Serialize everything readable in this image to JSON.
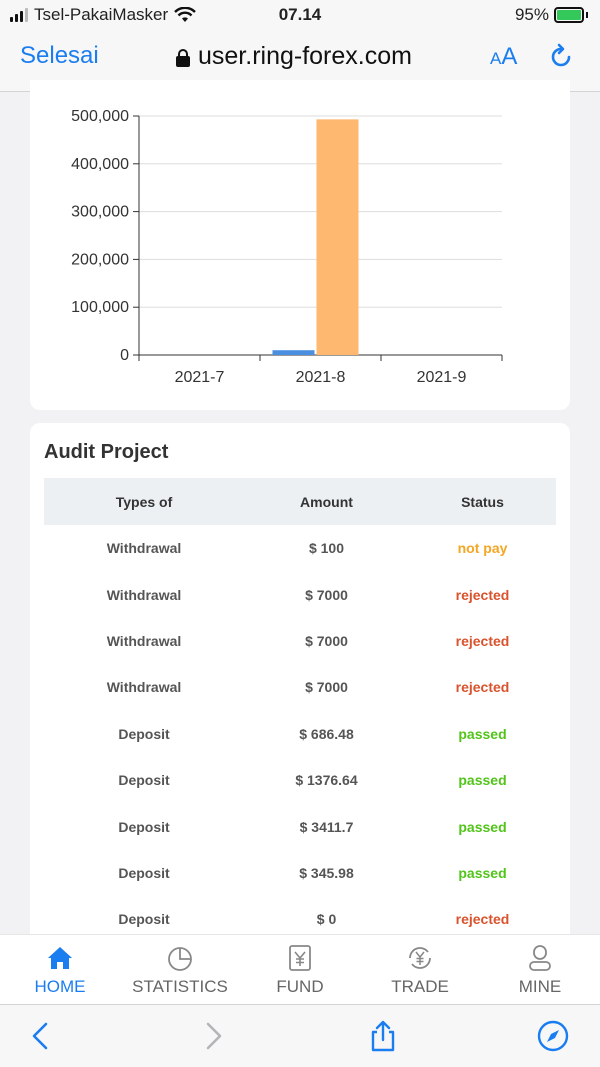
{
  "status_bar": {
    "carrier": "Tsel-PakaiMasker",
    "time": "07.14",
    "battery": "95%"
  },
  "browser": {
    "done_label": "Selesai",
    "url": "user.ring-forex.com",
    "text_size_label_small": "A",
    "text_size_label_large": "A"
  },
  "chart_data": {
    "type": "bar",
    "categories": [
      "2021-7",
      "2021-8",
      "2021-9"
    ],
    "series": [
      {
        "values": [
          0,
          10000,
          0
        ],
        "color": "#4a8fe0"
      },
      {
        "values": [
          0,
          493000,
          0
        ],
        "color": "#ffb870"
      }
    ],
    "ylim": [
      0,
      500000
    ],
    "yticks": [
      "0",
      "100,000",
      "200,000",
      "300,000",
      "400,000",
      "500,000"
    ],
    "grid": true
  },
  "audit": {
    "title": "Audit Project",
    "columns": [
      "Types of",
      "Amount",
      "Status"
    ],
    "rows": [
      {
        "type": "Withdrawal",
        "amount": "$ 100",
        "status": "not pay",
        "status_color": "#f5a623"
      },
      {
        "type": "Withdrawal",
        "amount": "$ 7000",
        "status": "rejected",
        "status_color": "#d9532c"
      },
      {
        "type": "Withdrawal",
        "amount": "$ 7000",
        "status": "rejected",
        "status_color": "#d9532c"
      },
      {
        "type": "Withdrawal",
        "amount": "$ 7000",
        "status": "rejected",
        "status_color": "#d9532c"
      },
      {
        "type": "Deposit",
        "amount": "$ 686.48",
        "status": "passed",
        "status_color": "#52c41a"
      },
      {
        "type": "Deposit",
        "amount": "$ 1376.64",
        "status": "passed",
        "status_color": "#52c41a"
      },
      {
        "type": "Deposit",
        "amount": "$ 3411.7",
        "status": "passed",
        "status_color": "#52c41a"
      },
      {
        "type": "Deposit",
        "amount": "$ 345.98",
        "status": "passed",
        "status_color": "#52c41a"
      },
      {
        "type": "Deposit",
        "amount": "$ 0",
        "status": "rejected",
        "status_color": "#d9532c"
      }
    ]
  },
  "tabs": [
    {
      "label": "HOME",
      "icon": "home-icon",
      "active": true
    },
    {
      "label": "STATISTICS",
      "icon": "pie-chart-icon",
      "active": false
    },
    {
      "label": "FUND",
      "icon": "yen-document-icon",
      "active": false
    },
    {
      "label": "TRADE",
      "icon": "yen-exchange-icon",
      "active": false
    },
    {
      "label": "MINE",
      "icon": "user-icon",
      "active": false
    }
  ],
  "colors": {
    "accent": "#1a7df0",
    "tab_inactive": "#666666"
  }
}
